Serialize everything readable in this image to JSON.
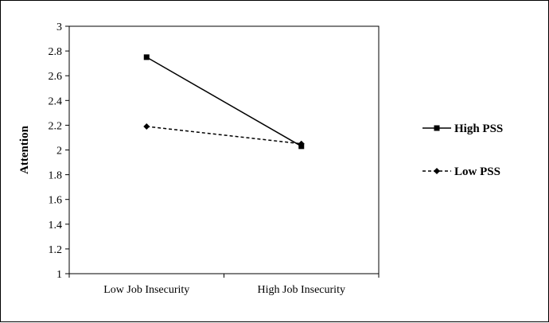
{
  "chart_data": {
    "type": "line",
    "categories": [
      "Low Job Insecurity",
      "High Job Insecurity"
    ],
    "series": [
      {
        "name": "High PSS",
        "values": [
          2.75,
          2.03
        ],
        "style": "solid",
        "marker": "square",
        "color": "#000000"
      },
      {
        "name": "Low PSS",
        "values": [
          2.19,
          2.05
        ],
        "style": "dashed",
        "marker": "diamond",
        "color": "#000000"
      }
    ],
    "ylabel": "Attention",
    "xlabel": "",
    "ylim": [
      1,
      3
    ],
    "yticks": [
      1,
      1.2,
      1.4,
      1.6,
      1.8,
      2,
      2.2,
      2.4,
      2.6,
      2.8,
      3
    ],
    "ytick_labels": [
      "1",
      "1.2",
      "1.4",
      "1.6",
      "1.8",
      "2",
      "2.2",
      "2.4",
      "2.6",
      "2.8",
      "3"
    ],
    "grid": false,
    "legend_position": "right"
  }
}
